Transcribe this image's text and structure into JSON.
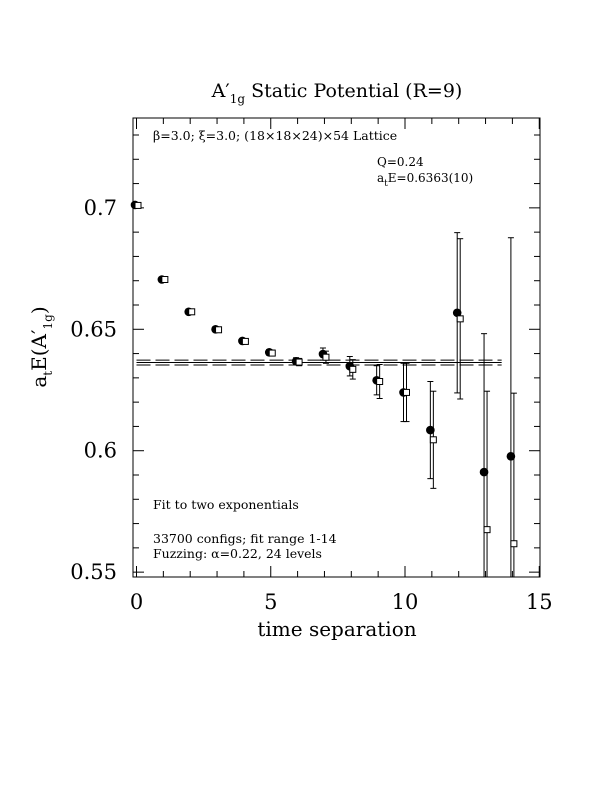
{
  "chart_data": {
    "type": "scatter",
    "title": "A′1g Static Potential (R=9)",
    "title_parts": {
      "main": "A′",
      "sub": "1g",
      "rest": " Static Potential (R=9)"
    },
    "xlabel": "time separation",
    "ylabel": "atE(A′1g)",
    "ylabel_parts": {
      "a": "a",
      "t": "t",
      "E": "E(A′",
      "sub": "1g",
      "close": ")"
    },
    "xlim": [
      0,
      15
    ],
    "ylim": [
      0.548,
      0.737
    ],
    "x_ticks": [
      0,
      5,
      10,
      15
    ],
    "y_ticks": [
      0.55,
      0.6,
      0.65,
      0.7
    ],
    "x_tick_labels": [
      "0",
      "5",
      "10",
      "15"
    ],
    "y_tick_labels": [
      "0.55",
      "0.6",
      "0.65",
      "0.7"
    ],
    "annotations": {
      "lattice": "β=3.0; ξ=3.0; (18×18×24)×54 Lattice",
      "q": "Q=0.24",
      "energy_prefix": "a",
      "energy_sub": "t",
      "energy_value": "E=0.6363(10)",
      "fit": "Fit to two exponentials",
      "configs": "33700 configs; fit range 1-14",
      "fuzzing": "Fuzzing: α=0.22, 24 levels"
    },
    "fit": {
      "value": 0.6363,
      "error": 0.001,
      "x_range": [
        0,
        13.6
      ]
    },
    "series": [
      {
        "marker": "filled-circle",
        "points": [
          {
            "x": 0,
            "y": 0.7012,
            "err": 0.001
          },
          {
            "x": 1,
            "y": 0.6705,
            "err": 0.001
          },
          {
            "x": 2,
            "y": 0.6572,
            "err": 0.001
          },
          {
            "x": 3,
            "y": 0.65,
            "err": 0.001
          },
          {
            "x": 4,
            "y": 0.6452,
            "err": 0.001
          },
          {
            "x": 5,
            "y": 0.6405,
            "err": 0.0012
          },
          {
            "x": 6,
            "y": 0.6368,
            "err": 0.0015
          },
          {
            "x": 7,
            "y": 0.6398,
            "err": 0.0025
          },
          {
            "x": 8,
            "y": 0.6348,
            "err": 0.004
          },
          {
            "x": 9,
            "y": 0.629,
            "err": 0.006
          },
          {
            "x": 10,
            "y": 0.624,
            "err": 0.012
          },
          {
            "x": 11,
            "y": 0.6085,
            "err": 0.02
          },
          {
            "x": 12,
            "y": 0.6568,
            "err": 0.033
          },
          {
            "x": 13,
            "y": 0.5912,
            "err": 0.057
          },
          {
            "x": 14,
            "y": 0.5977,
            "err": 0.09
          }
        ]
      },
      {
        "marker": "open-square",
        "points": [
          {
            "x": 0,
            "y": 0.701,
            "err": 0.001
          },
          {
            "x": 1,
            "y": 0.6705,
            "err": 0.001
          },
          {
            "x": 2,
            "y": 0.6572,
            "err": 0.001
          },
          {
            "x": 3,
            "y": 0.6498,
            "err": 0.001
          },
          {
            "x": 4,
            "y": 0.645,
            "err": 0.001
          },
          {
            "x": 5,
            "y": 0.6402,
            "err": 0.0012
          },
          {
            "x": 6,
            "y": 0.6365,
            "err": 0.0015
          },
          {
            "x": 7,
            "y": 0.6385,
            "err": 0.0025
          },
          {
            "x": 8,
            "y": 0.6335,
            "err": 0.004
          },
          {
            "x": 9,
            "y": 0.6285,
            "err": 0.007
          },
          {
            "x": 10,
            "y": 0.624,
            "err": 0.012
          },
          {
            "x": 11,
            "y": 0.6045,
            "err": 0.02
          },
          {
            "x": 12,
            "y": 0.6543,
            "err": 0.033
          },
          {
            "x": 13,
            "y": 0.5675,
            "err": 0.057
          },
          {
            "x": 14,
            "y": 0.5617,
            "err": 0.062
          }
        ]
      }
    ]
  }
}
